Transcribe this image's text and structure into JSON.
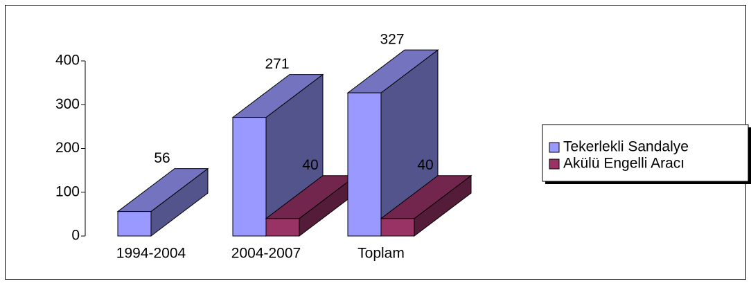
{
  "chart_data": {
    "type": "bar3d",
    "categories": [
      "1994-2004",
      "2004-2007",
      "Toplam"
    ],
    "series": [
      {
        "name": "Tekerlekli Sandalye",
        "color": "#9999ff",
        "values": [
          56,
          271,
          327
        ]
      },
      {
        "name": "Akülü Engelli Aracı",
        "color": "#993366",
        "values": [
          null,
          40,
          40
        ]
      }
    ],
    "ylim": [
      0,
      400
    ],
    "yticks": [
      0,
      100,
      200,
      300,
      400
    ],
    "grid": false,
    "legend": "right"
  }
}
